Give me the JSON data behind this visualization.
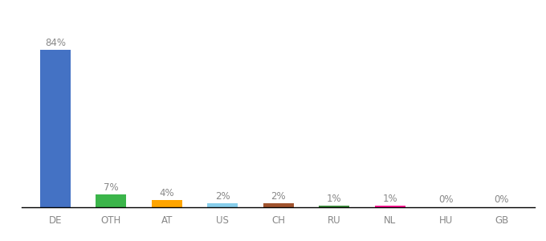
{
  "categories": [
    "DE",
    "OTH",
    "AT",
    "US",
    "CH",
    "RU",
    "NL",
    "HU",
    "GB"
  ],
  "values": [
    84,
    7,
    4,
    2,
    2,
    1,
    1,
    0.3,
    0.3
  ],
  "labels": [
    "84%",
    "7%",
    "4%",
    "2%",
    "2%",
    "1%",
    "1%",
    "0%",
    "0%"
  ],
  "colors": [
    "#4472C4",
    "#3BB54A",
    "#FFA500",
    "#87CEEB",
    "#A0522D",
    "#3B8C3B",
    "#FF1493",
    "#FFFFFF",
    "#FFFFFF"
  ],
  "background_color": "#FFFFFF",
  "ylim": [
    0,
    95
  ],
  "bar_width": 0.55,
  "label_fontsize": 8.5,
  "tick_fontsize": 8.5,
  "label_color": "#888888",
  "tick_color": "#888888"
}
